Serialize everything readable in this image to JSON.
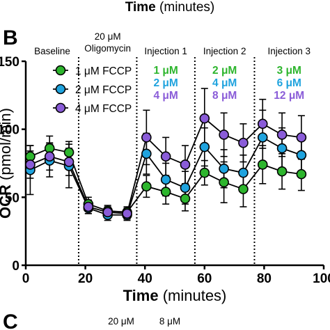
{
  "top_caption": {
    "text": "Time (minutes)",
    "bold_part": "Time",
    "rest": " (minutes)"
  },
  "panel_letter": "B",
  "next_panel": {
    "letter": "C",
    "labels": [
      "20 μM",
      "8 μM"
    ]
  },
  "colors": {
    "green": "#2db52d",
    "blue": "#1fa3de",
    "purple": "#8a5cd8",
    "line": "#000000"
  },
  "chart_data": {
    "type": "line",
    "title": "",
    "xlabel": "Time (minutes)",
    "xlabel_bold": "Time",
    "xlabel_rest": " (minutes)",
    "ylabel": "OCR (pmol/min)",
    "ylabel_bold": "OCR",
    "ylabel_rest": " (pmol/min)",
    "xlim": [
      0,
      100
    ],
    "ylim": [
      0,
      150
    ],
    "xticks": [
      "0",
      "20",
      "40",
      "60",
      "80",
      "100"
    ],
    "yticks": [
      "0",
      "50",
      "100",
      "150"
    ],
    "x": [
      1.5,
      8,
      14.5,
      21,
      27.5,
      34,
      40.5,
      47,
      53.5,
      60,
      66.5,
      73,
      79.5,
      86,
      92.5
    ],
    "series": [
      {
        "name": "1 μM FCCP",
        "color": "green",
        "values": [
          80,
          86,
          83,
          45,
          40,
          39,
          58,
          54,
          49,
          68,
          61,
          56,
          74,
          69,
          67
        ],
        "err": [
          8,
          9,
          8,
          5,
          4,
          4,
          8,
          9,
          9,
          9,
          15,
          13,
          14,
          13,
          12
        ]
      },
      {
        "name": "2 μM FCCP",
        "color": "blue",
        "values": [
          70,
          77,
          73,
          42,
          37,
          37,
          82,
          63,
          57,
          87,
          71,
          68,
          94,
          86,
          81
        ],
        "err": [
          18,
          12,
          16,
          4,
          4,
          4,
          15,
          12,
          12,
          14,
          14,
          13,
          20,
          15,
          14
        ]
      },
      {
        "name": "4 μM FCCP",
        "color": "purple",
        "values": [
          74,
          80,
          76,
          43,
          39,
          38,
          94,
          80,
          74,
          108,
          96,
          90,
          104,
          96,
          94
        ],
        "err": [
          10,
          10,
          10,
          5,
          4,
          4,
          20,
          14,
          14,
          22,
          16,
          14,
          18,
          16,
          16
        ]
      }
    ],
    "injection_lines_x": [
      17.75,
      37.25,
      56.75,
      76.75
    ],
    "phases": [
      {
        "label_lines": [
          "Baseline"
        ]
      },
      {
        "label_lines": [
          "20 μM",
          "Oligomycin"
        ]
      },
      {
        "label_lines": [
          "Injection 1"
        ],
        "doses": [
          "1 μM",
          "2 μM",
          "4 μM"
        ]
      },
      {
        "label_lines": [
          "Injection 2"
        ],
        "doses": [
          "2 μM",
          "4 μM",
          "8 μM"
        ]
      },
      {
        "label_lines": [
          "Injection 3"
        ],
        "doses": [
          "3 μM",
          "6 μM",
          "12 μM"
        ]
      }
    ],
    "legend_placement": "top-left",
    "grid": false
  }
}
